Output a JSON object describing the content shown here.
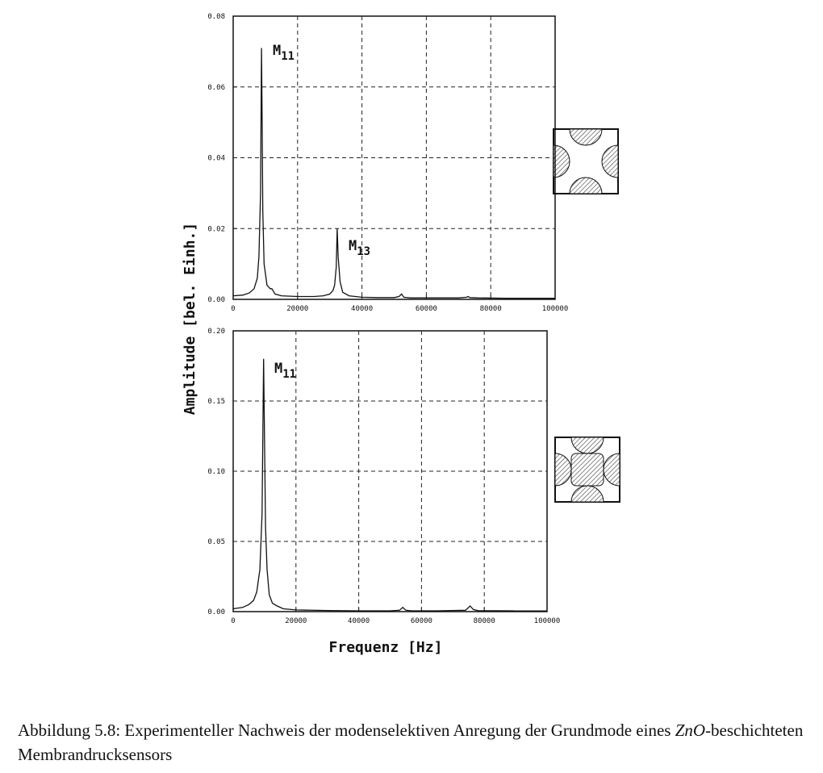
{
  "chart_data": [
    {
      "type": "line",
      "color": "#111",
      "ylabel": "Amplitude [bel. Einh.]",
      "x": [
        0,
        3000,
        5000,
        6500,
        7500,
        8000,
        8500,
        8800,
        9000,
        9200,
        9600,
        10500,
        11500,
        12000,
        13000,
        15000,
        20000,
        25000,
        28000,
        30000,
        31000,
        31500,
        32000,
        32300,
        32600,
        33200,
        34000,
        36000,
        40000,
        45000,
        50000,
        51500,
        52300,
        53000,
        55000,
        60000,
        70000,
        72500,
        73000,
        73500,
        76000,
        85000,
        100000
      ],
      "values": [
        0.001,
        0.0012,
        0.0018,
        0.003,
        0.006,
        0.012,
        0.03,
        0.071,
        0.05,
        0.025,
        0.01,
        0.004,
        0.003,
        0.003,
        0.0015,
        0.001,
        0.0008,
        0.0008,
        0.001,
        0.0015,
        0.0025,
        0.004,
        0.009,
        0.02,
        0.012,
        0.005,
        0.002,
        0.001,
        0.0006,
        0.0005,
        0.0005,
        0.0008,
        0.0015,
        0.0006,
        0.0004,
        0.0004,
        0.0004,
        0.0006,
        0.0008,
        0.0005,
        0.0004,
        0.0003,
        0.0003
      ],
      "xlim": [
        0,
        100000
      ],
      "xticks": [
        0,
        20000,
        40000,
        60000,
        80000,
        100000
      ],
      "ylim": [
        0,
        0.08
      ],
      "yticks": [
        {
          "value": 0,
          "label": "0.00"
        },
        {
          "value": 0.02,
          "label": "0.02"
        },
        {
          "value": 0.04,
          "label": "0.04"
        },
        {
          "value": 0.06,
          "label": "0.06"
        },
        {
          "value": 0.08,
          "label": "0.08"
        }
      ],
      "grid": true,
      "annotations": [
        {
          "text": "M",
          "sub": "11"
        },
        {
          "text": "M",
          "sub": "13"
        }
      ]
    },
    {
      "type": "line",
      "color": "#111",
      "xlabel": "Frequenz [Hz]",
      "x": [
        0,
        3000,
        5000,
        6500,
        7500,
        8500,
        9200,
        9700,
        10000,
        10300,
        10800,
        11500,
        12500,
        14000,
        16000,
        20000,
        30000,
        40000,
        50000,
        53000,
        54000,
        55000,
        57000,
        65000,
        74000,
        75500,
        76500,
        78000,
        90000,
        100000
      ],
      "values": [
        0.002,
        0.003,
        0.005,
        0.008,
        0.014,
        0.03,
        0.07,
        0.18,
        0.12,
        0.06,
        0.03,
        0.012,
        0.006,
        0.004,
        0.002,
        0.0012,
        0.0008,
        0.0006,
        0.0006,
        0.001,
        0.003,
        0.001,
        0.0006,
        0.0006,
        0.001,
        0.004,
        0.0015,
        0.0007,
        0.0005,
        0.0005
      ],
      "xlim": [
        0,
        100000
      ],
      "xticks": [
        0,
        20000,
        40000,
        60000,
        80000,
        100000
      ],
      "ylim": [
        0,
        0.2
      ],
      "yticks": [
        {
          "value": 0,
          "label": "0.00"
        },
        {
          "value": 0.05,
          "label": "0.05"
        },
        {
          "value": 0.1,
          "label": "0.10"
        },
        {
          "value": 0.15,
          "label": "0.15"
        },
        {
          "value": 0.2,
          "label": "0.20"
        }
      ],
      "grid": true,
      "annotations": [
        {
          "text": "M",
          "sub": "11"
        }
      ]
    }
  ],
  "caption": {
    "parts": [
      "Abbildung 5.8: Experimenteller Nachweis der modenselektiven Anregung der Grundmode eines ",
      "ZnO",
      "-beschichteten Membrandrucksensors"
    ]
  }
}
